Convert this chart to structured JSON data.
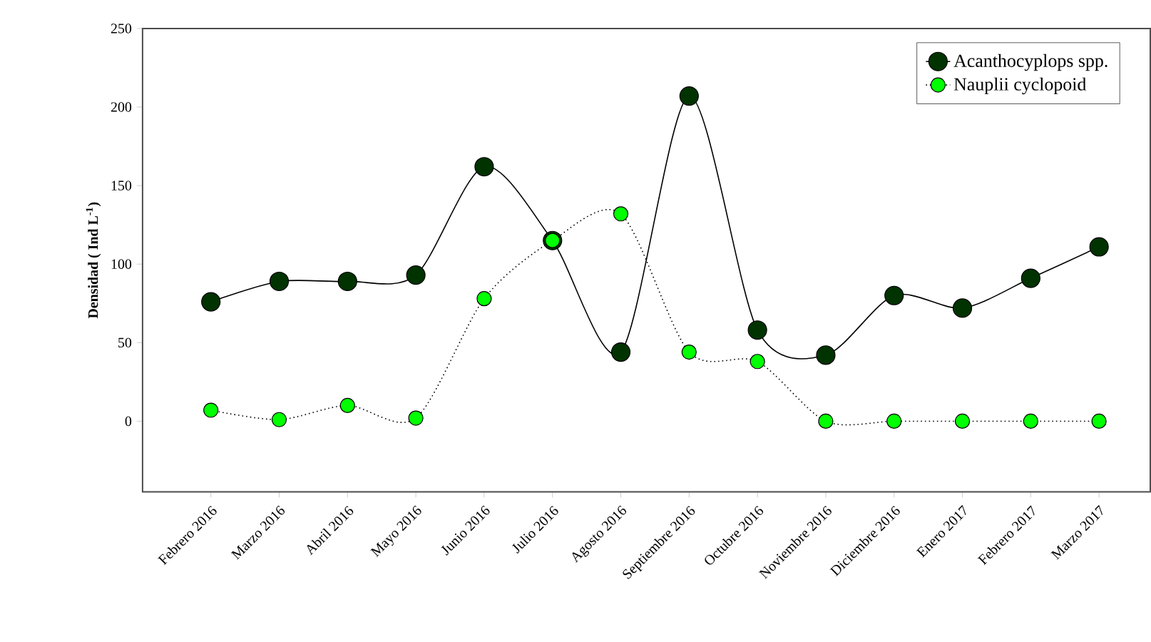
{
  "chart_data": {
    "type": "line",
    "ylabel": "Densidad ( Ind L$^{-1}$)",
    "categories": [
      "Febrero 2016",
      "Marzo 2016",
      "Abril 2016",
      "Mayo 2016",
      "Junio 2016",
      "Julio 2016",
      "Agosto 2016",
      "Septiembre 2016",
      "Octubre 2016",
      "Noviembre 2016",
      "Diciembre 2016",
      "Enero 2017",
      "Febrero 2017",
      "Marzo 2017"
    ],
    "series": [
      {
        "name": "Acanthocyplops spp.",
        "color": "#003300",
        "line_style": "solid",
        "values": [
          76,
          89,
          89,
          93,
          162,
          115,
          44,
          207,
          58,
          42,
          80,
          72,
          91,
          111
        ]
      },
      {
        "name": "Nauplii cyclopoid",
        "color": "#00ff00",
        "line_style": "dotted",
        "values": [
          7,
          1,
          10,
          2,
          78,
          115,
          132,
          44,
          38,
          0,
          0,
          0,
          0,
          0
        ]
      }
    ],
    "ylim": [
      -45,
      250
    ],
    "yticks": [
      0,
      50,
      100,
      150,
      200,
      250
    ],
    "marker": "circle",
    "grid": false,
    "legend": "top right"
  }
}
